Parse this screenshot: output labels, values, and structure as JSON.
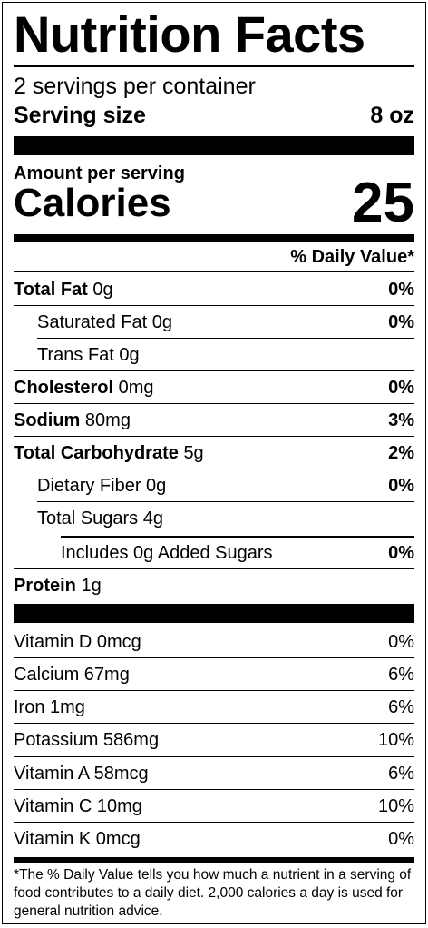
{
  "title": "Nutrition Facts",
  "servings_per_container": "2 servings per container",
  "serving_size": {
    "label": "Serving size",
    "value": "8 oz"
  },
  "amount_per_serving": "Amount per serving",
  "calories": {
    "label": "Calories",
    "value": "25"
  },
  "daily_value_header": "% Daily Value*",
  "nutrients": [
    {
      "name": "Total Fat",
      "amount": "0g",
      "dv": "0%"
    },
    {
      "name": "Saturated Fat",
      "amount": "0g",
      "dv": "0%"
    },
    {
      "name": "Trans Fat",
      "amount": "0g",
      "dv": ""
    },
    {
      "name": "Cholesterol",
      "amount": "0mg",
      "dv": "0%"
    },
    {
      "name": "Sodium",
      "amount": "80mg",
      "dv": "3%"
    },
    {
      "name": "Total Carbohydrate",
      "amount": "5g",
      "dv": "2%"
    },
    {
      "name": "Dietary Fiber",
      "amount": "0g",
      "dv": "0%"
    },
    {
      "name": "Total Sugars",
      "amount": "4g",
      "dv": ""
    },
    {
      "name": "Includes 0g Added Sugars",
      "amount": "",
      "dv": "0%"
    },
    {
      "name": "Protein",
      "amount": "1g",
      "dv": ""
    }
  ],
  "vitamins": [
    {
      "text": "Vitamin D 0mcg",
      "dv": "0%"
    },
    {
      "text": "Calcium 67mg",
      "dv": "6%"
    },
    {
      "text": "Iron 1mg",
      "dv": "6%"
    },
    {
      "text": "Potassium 586mg",
      "dv": "10%"
    },
    {
      "text": "Vitamin A 58mcg",
      "dv": "6%"
    },
    {
      "text": "Vitamin C 10mg",
      "dv": "10%"
    },
    {
      "text": "Vitamin K 0mcg",
      "dv": "0%"
    }
  ],
  "footnote": "*The % Daily Value tells you how much a nutrient in a serving of food contributes to a daily diet. 2,000 calories a day is used for general nutrition advice."
}
